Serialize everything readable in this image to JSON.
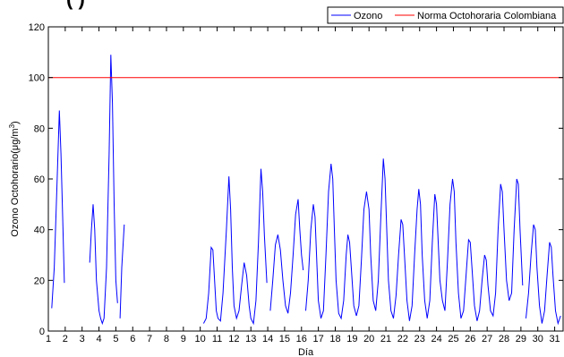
{
  "chart_data": {
    "type": "line",
    "title_fragment": "(   )",
    "xlabel": "Día",
    "ylabel": "Ozono Octohorario(μg/m",
    "ylabel_sup": "3",
    "ylabel_end": ")",
    "xlim": [
      1,
      31.5
    ],
    "ylim": [
      0,
      120
    ],
    "x_ticks": [
      1,
      2,
      3,
      4,
      5,
      6,
      7,
      8,
      9,
      10,
      11,
      12,
      13,
      14,
      15,
      16,
      17,
      18,
      19,
      20,
      21,
      22,
      23,
      24,
      25,
      26,
      27,
      28,
      29,
      30,
      31
    ],
    "y_ticks": [
      0,
      20,
      40,
      60,
      80,
      100,
      120
    ],
    "grid": false,
    "legend_position": "top-right",
    "series": [
      {
        "name": "Ozono",
        "color": "#0000ff",
        "segments": [
          [
            [
              1.2,
              9
            ],
            [
              1.35,
              25
            ],
            [
              1.5,
              55
            ],
            [
              1.65,
              87
            ],
            [
              1.75,
              70
            ],
            [
              1.85,
              45
            ],
            [
              1.95,
              19
            ]
          ],
          [
            [
              3.45,
              27
            ],
            [
              3.55,
              40
            ],
            [
              3.65,
              50
            ],
            [
              3.75,
              40
            ],
            [
              3.85,
              20
            ],
            [
              4.0,
              8
            ],
            [
              4.1,
              5
            ],
            [
              4.2,
              3
            ],
            [
              4.3,
              5
            ],
            [
              4.45,
              25
            ],
            [
              4.6,
              70
            ],
            [
              4.7,
              109
            ],
            [
              4.8,
              90
            ],
            [
              4.9,
              50
            ],
            [
              5.0,
              20
            ],
            [
              5.1,
              11
            ]
          ],
          [
            [
              5.25,
              5
            ],
            [
              5.35,
              25
            ],
            [
              5.5,
              42
            ]
          ],
          [
            [
              10.2,
              3
            ],
            [
              10.35,
              5
            ],
            [
              10.5,
              15
            ],
            [
              10.65,
              33
            ],
            [
              10.75,
              32
            ],
            [
              10.85,
              20
            ],
            [
              10.95,
              8
            ],
            [
              11.05,
              5
            ],
            [
              11.2,
              4
            ],
            [
              11.35,
              15
            ],
            [
              11.55,
              40
            ],
            [
              11.7,
              61
            ],
            [
              11.8,
              48
            ],
            [
              11.9,
              25
            ],
            [
              12.0,
              10
            ],
            [
              12.15,
              5
            ],
            [
              12.3,
              8
            ],
            [
              12.45,
              18
            ],
            [
              12.6,
              27
            ],
            [
              12.75,
              22
            ],
            [
              12.9,
              10
            ],
            [
              13.0,
              5
            ],
            [
              13.15,
              3
            ],
            [
              13.3,
              12
            ],
            [
              13.45,
              35
            ],
            [
              13.6,
              64
            ],
            [
              13.7,
              55
            ],
            [
              13.8,
              38
            ],
            [
              13.95,
              19
            ]
          ],
          [
            [
              14.15,
              8
            ],
            [
              14.3,
              20
            ],
            [
              14.45,
              34
            ],
            [
              14.6,
              38
            ],
            [
              14.75,
              32
            ],
            [
              14.9,
              20
            ],
            [
              15.05,
              10
            ],
            [
              15.2,
              7
            ],
            [
              15.35,
              15
            ],
            [
              15.5,
              30
            ],
            [
              15.65,
              46
            ],
            [
              15.8,
              52
            ],
            [
              15.9,
              40
            ],
            [
              16.0,
              30
            ],
            [
              16.1,
              24
            ]
          ],
          [
            [
              16.25,
              8
            ],
            [
              16.4,
              20
            ],
            [
              16.55,
              40
            ],
            [
              16.7,
              50
            ],
            [
              16.8,
              45
            ],
            [
              16.9,
              28
            ],
            [
              17.0,
              12
            ],
            [
              17.15,
              5
            ],
            [
              17.3,
              8
            ],
            [
              17.45,
              30
            ],
            [
              17.6,
              55
            ],
            [
              17.75,
              66
            ],
            [
              17.85,
              60
            ],
            [
              17.95,
              40
            ],
            [
              18.05,
              20
            ],
            [
              18.2,
              7
            ],
            [
              18.35,
              5
            ],
            [
              18.5,
              12
            ],
            [
              18.65,
              30
            ],
            [
              18.75,
              38
            ],
            [
              18.85,
              35
            ],
            [
              18.95,
              25
            ],
            [
              19.1,
              10
            ],
            [
              19.25,
              6
            ],
            [
              19.4,
              10
            ],
            [
              19.55,
              28
            ],
            [
              19.7,
              48
            ],
            [
              19.85,
              55
            ],
            [
              20.0,
              48
            ],
            [
              20.1,
              30
            ],
            [
              20.25,
              12
            ],
            [
              20.4,
              8
            ],
            [
              20.55,
              20
            ],
            [
              20.7,
              45
            ],
            [
              20.85,
              68
            ],
            [
              20.95,
              60
            ],
            [
              21.05,
              40
            ],
            [
              21.15,
              20
            ],
            [
              21.3,
              8
            ],
            [
              21.45,
              5
            ],
            [
              21.6,
              14
            ],
            [
              21.75,
              30
            ],
            [
              21.9,
              44
            ],
            [
              22.0,
              42
            ],
            [
              22.1,
              30
            ],
            [
              22.25,
              12
            ],
            [
              22.4,
              4
            ],
            [
              22.55,
              10
            ],
            [
              22.7,
              30
            ],
            [
              22.85,
              48
            ],
            [
              22.95,
              56
            ],
            [
              23.05,
              50
            ],
            [
              23.15,
              30
            ],
            [
              23.3,
              12
            ],
            [
              23.45,
              5
            ],
            [
              23.6,
              12
            ],
            [
              23.75,
              35
            ],
            [
              23.9,
              54
            ],
            [
              24.0,
              50
            ],
            [
              24.1,
              35
            ],
            [
              24.2,
              20
            ],
            [
              24.35,
              12
            ],
            [
              24.5,
              8
            ],
            [
              24.65,
              28
            ],
            [
              24.8,
              50
            ],
            [
              24.95,
              60
            ],
            [
              25.05,
              55
            ],
            [
              25.15,
              35
            ],
            [
              25.3,
              15
            ],
            [
              25.45,
              5
            ],
            [
              25.6,
              8
            ],
            [
              25.75,
              22
            ],
            [
              25.9,
              36
            ],
            [
              26.0,
              35
            ],
            [
              26.1,
              25
            ],
            [
              26.25,
              10
            ],
            [
              26.4,
              4
            ],
            [
              26.55,
              8
            ],
            [
              26.7,
              20
            ],
            [
              26.85,
              30
            ],
            [
              26.95,
              28
            ],
            [
              27.05,
              18
            ],
            [
              27.2,
              8
            ],
            [
              27.35,
              6
            ],
            [
              27.5,
              15
            ],
            [
              27.65,
              40
            ],
            [
              27.8,
              58
            ],
            [
              27.9,
              55
            ],
            [
              28.0,
              40
            ],
            [
              28.15,
              20
            ],
            [
              28.3,
              12
            ],
            [
              28.45,
              15
            ],
            [
              28.6,
              40
            ],
            [
              28.75,
              60
            ],
            [
              28.85,
              58
            ],
            [
              28.95,
              40
            ],
            [
              29.1,
              18
            ]
          ],
          [
            [
              29.3,
              5
            ],
            [
              29.45,
              15
            ],
            [
              29.6,
              30
            ],
            [
              29.75,
              42
            ],
            [
              29.85,
              40
            ],
            [
              29.95,
              25
            ],
            [
              30.1,
              10
            ],
            [
              30.25,
              3
            ],
            [
              30.4,
              8
            ],
            [
              30.55,
              22
            ],
            [
              30.7,
              35
            ],
            [
              30.8,
              33
            ],
            [
              30.9,
              22
            ],
            [
              31.05,
              8
            ],
            [
              31.2,
              3
            ],
            [
              31.35,
              6
            ]
          ]
        ]
      },
      {
        "name": "Norma Octohoraria Colombiana",
        "color": "#ff0000",
        "x": [
          1,
          31.5
        ],
        "values": [
          100,
          100
        ]
      }
    ]
  }
}
